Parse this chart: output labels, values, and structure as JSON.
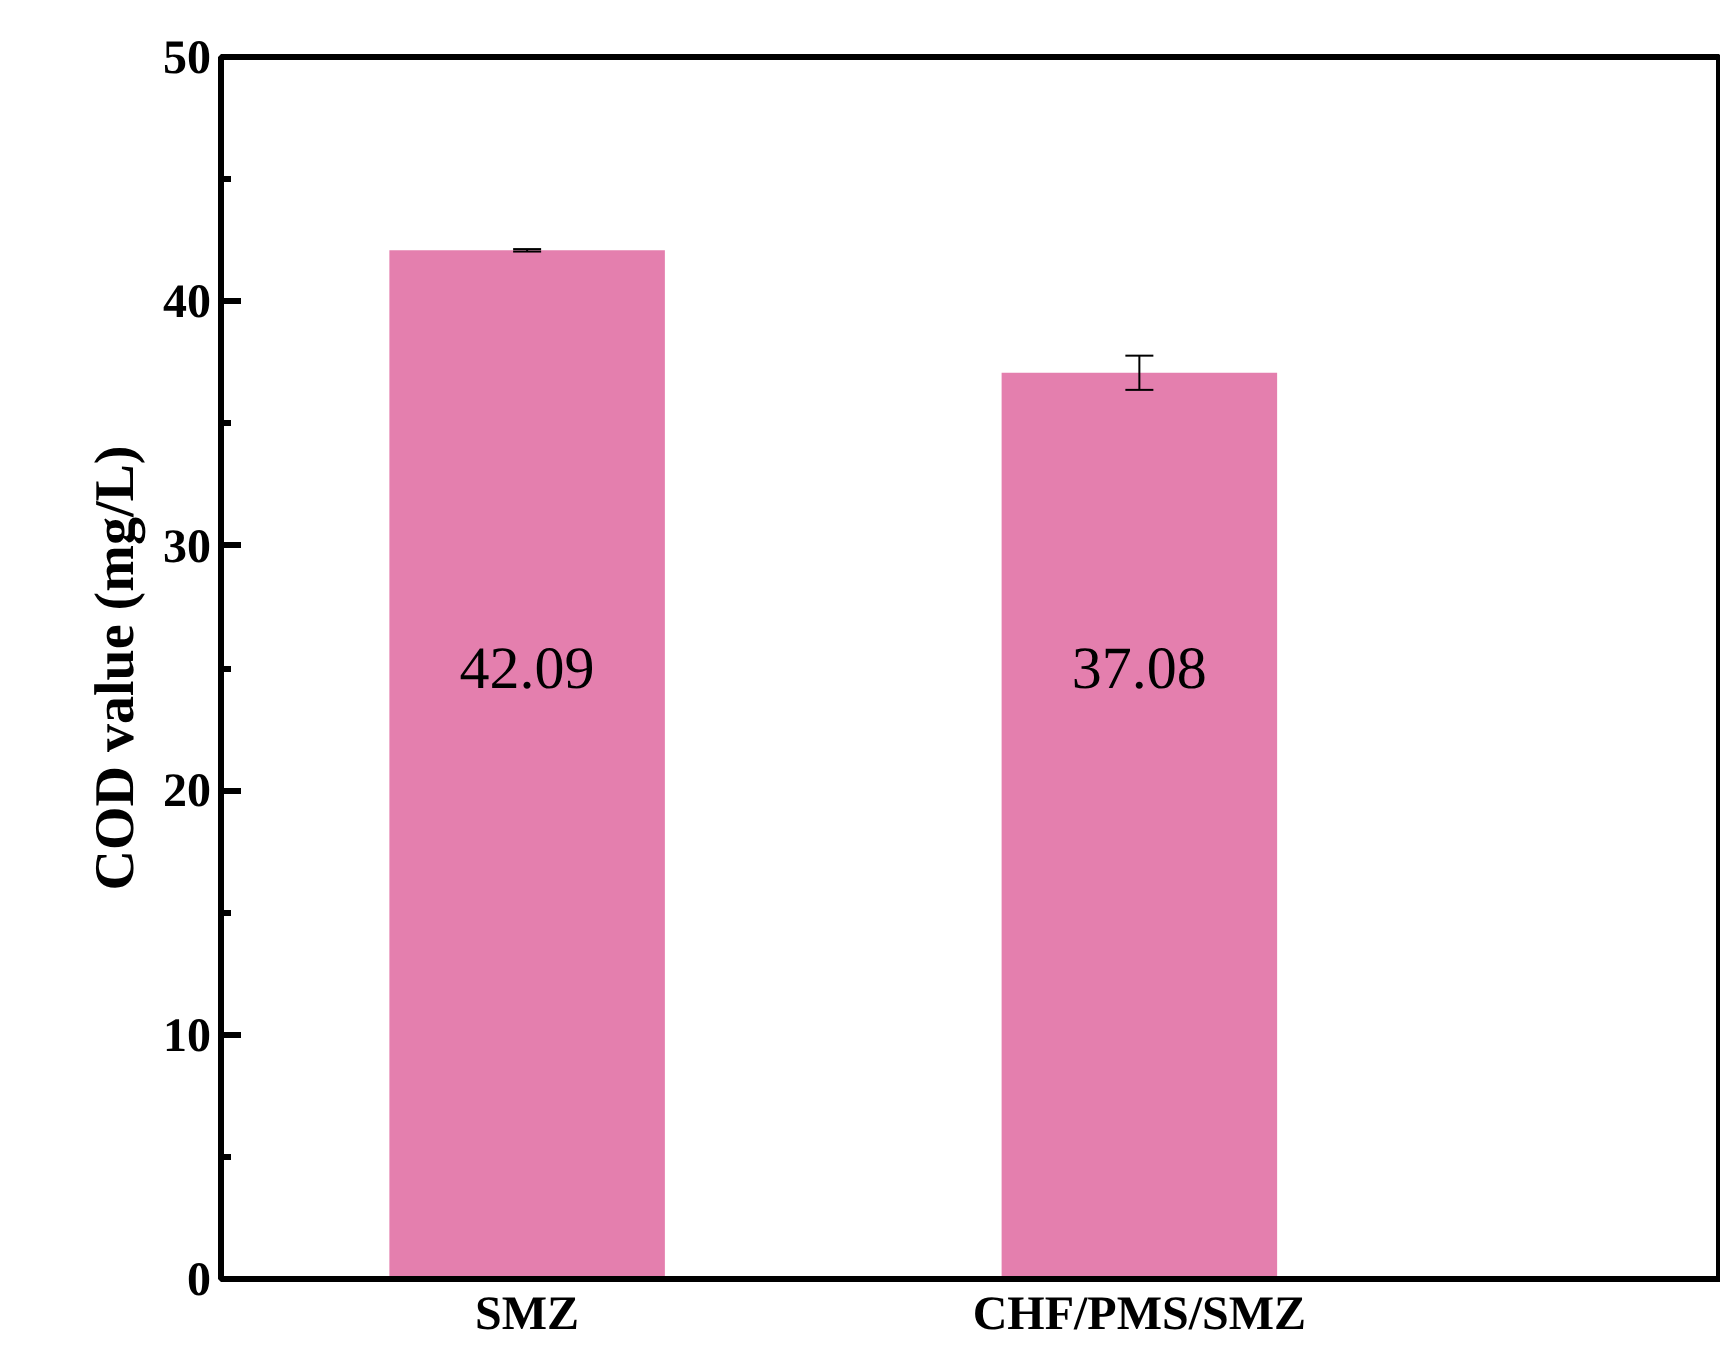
{
  "chart_data": {
    "type": "bar",
    "ylabel": "COD value (mg/L)",
    "categories": [
      "SMZ",
      "CHF/PMS/SMZ"
    ],
    "values": [
      42.09,
      37.08
    ],
    "errors": [
      0.05,
      0.7
    ],
    "color": "#e47fae",
    "data_labels": true,
    "ylim": [
      0,
      50
    ],
    "yticks": [
      0,
      10,
      20,
      30,
      40,
      50
    ],
    "grid": false
  }
}
